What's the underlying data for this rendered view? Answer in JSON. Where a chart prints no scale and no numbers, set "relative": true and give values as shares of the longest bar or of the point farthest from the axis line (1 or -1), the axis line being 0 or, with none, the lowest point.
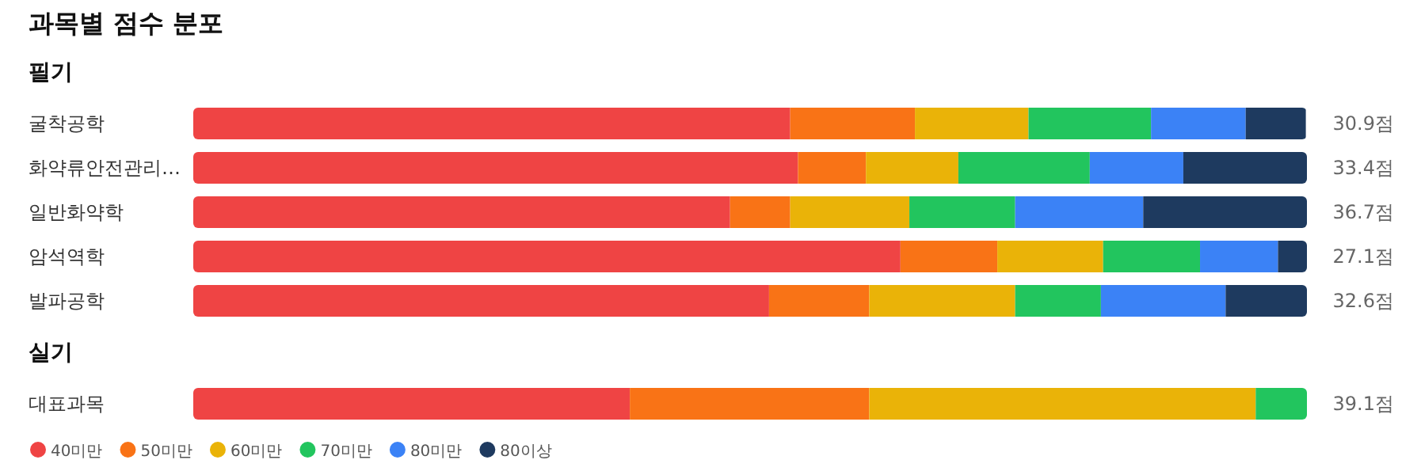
{
  "chart_data": [
    {
      "type": "bar",
      "orientation": "horizontal",
      "stacked": true,
      "relative": true,
      "title": "과목별 점수 분포",
      "subtitle": "필기",
      "legend": false,
      "categories": [
        "굴착공학",
        "화약류안전관리…",
        "일반화약학",
        "암석역학",
        "발파공학"
      ],
      "series": [
        {
          "color": "#ef4444",
          "values": [
            0.536,
            0.543,
            0.482,
            0.635,
            0.517
          ]
        },
        {
          "color": "#f97316",
          "values": [
            0.112,
            0.061,
            0.054,
            0.087,
            0.09
          ]
        },
        {
          "color": "#eab308",
          "values": [
            0.102,
            0.083,
            0.107,
            0.095,
            0.131
          ]
        },
        {
          "color": "#22c55e",
          "values": [
            0.11,
            0.118,
            0.095,
            0.087,
            0.077
          ]
        },
        {
          "color": "#3b82f6",
          "values": [
            0.085,
            0.084,
            0.115,
            0.07,
            0.112
          ]
        },
        {
          "color": "#1e3a5f",
          "values": [
            0.054,
            0.111,
            0.147,
            0.026,
            0.073
          ]
        }
      ],
      "annotations": [
        "30.9점",
        "33.4점",
        "36.7점",
        "27.1점",
        "32.6점"
      ]
    },
    {
      "type": "bar",
      "orientation": "horizontal",
      "stacked": true,
      "relative": true,
      "subtitle": "실기",
      "legend": "bottom",
      "categories": [
        "대표과목"
      ],
      "series": [
        {
          "name": "40미만",
          "color": "#ef4444",
          "values": [
            0.392
          ]
        },
        {
          "name": "50미만",
          "color": "#f97316",
          "values": [
            0.215
          ]
        },
        {
          "name": "60미만",
          "color": "#eab308",
          "values": [
            0.347
          ]
        },
        {
          "name": "70미만",
          "color": "#22c55e",
          "values": [
            0.046
          ]
        },
        {
          "name": "80미만",
          "color": "#3b82f6",
          "values": [
            0
          ]
        },
        {
          "name": "80이상",
          "color": "#1e3a5f",
          "values": [
            0
          ]
        }
      ],
      "annotations": [
        "39.1점"
      ]
    }
  ]
}
